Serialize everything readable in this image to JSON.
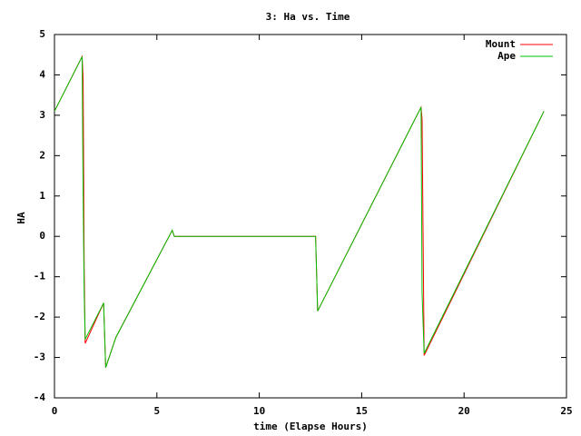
{
  "chart_data": {
    "type": "line",
    "title": "3: Ha vs. Time",
    "x_label": "time (Elapse Hours)",
    "y_label": "HA",
    "x": [
      0,
      1.35,
      1.4,
      1.45,
      1.5,
      2.4,
      2.5,
      3.0,
      5.75,
      5.85,
      12.75,
      12.85,
      17.9,
      17.95,
      18.05,
      23.9
    ],
    "series": [
      {
        "name": "Mount",
        "color": "#ff0000",
        "values": [
          3.1,
          4.45,
          3.9,
          -0.8,
          -2.65,
          -1.65,
          -3.25,
          -2.5,
          0.15,
          0,
          0,
          -1.85,
          3.2,
          2.9,
          -2.95,
          3.1
        ]
      },
      {
        "name": "Ape",
        "color": "#00c000",
        "values": [
          3.1,
          4.45,
          1.0,
          -1.4,
          -2.55,
          -1.65,
          -3.25,
          -2.5,
          0.15,
          0,
          0,
          -1.85,
          3.2,
          -1.4,
          -2.9,
          3.1
        ]
      }
    ],
    "xlim": [
      0,
      25
    ],
    "xticks": [
      0,
      5,
      10,
      15,
      20,
      25
    ],
    "ylim": [
      -4,
      5
    ],
    "yticks": [
      -4,
      -3,
      -2,
      -1,
      0,
      1,
      2,
      3,
      4,
      5
    ],
    "grid": false,
    "legend": "top-right"
  }
}
